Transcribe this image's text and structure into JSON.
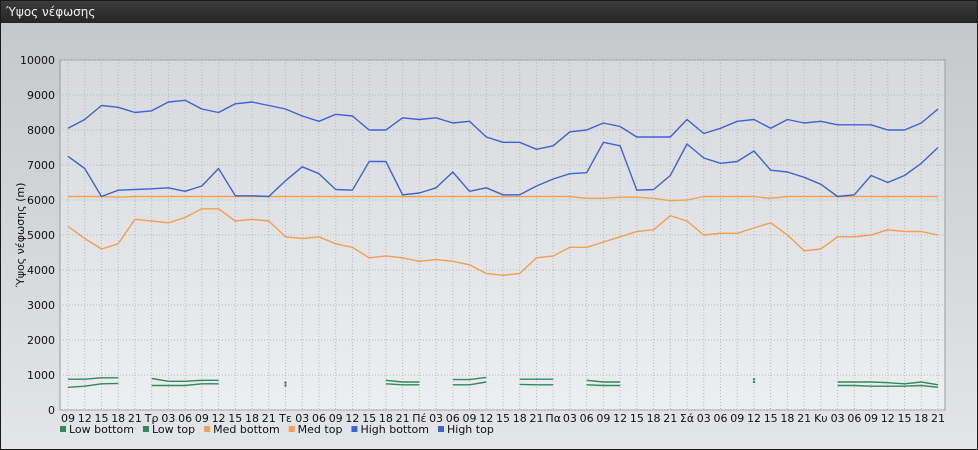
{
  "window": {
    "title": "Ύψος νέφωσης"
  },
  "chart_data": {
    "type": "line",
    "title": "",
    "ylabel": "Ύψος νέφωσης (m)",
    "ylim": [
      0,
      10000
    ],
    "yticks": [
      0,
      1000,
      2000,
      3000,
      4000,
      5000,
      6000,
      7000,
      8000,
      9000,
      10000
    ],
    "grid": true,
    "legend_position": "bottom-left",
    "x": [
      "09",
      "12",
      "15",
      "18",
      "21",
      "Τρ",
      "03",
      "06",
      "09",
      "12",
      "15",
      "18",
      "21",
      "Τε",
      "03",
      "06",
      "09",
      "12",
      "15",
      "18",
      "21",
      "Πέ",
      "03",
      "06",
      "09",
      "12",
      "15",
      "18",
      "21",
      "Πα",
      "03",
      "06",
      "09",
      "12",
      "15",
      "18",
      "21",
      "Σά",
      "03",
      "06",
      "09",
      "12",
      "15",
      "18",
      "21",
      "Κυ",
      "03",
      "06",
      "09",
      "12",
      "15",
      "18",
      "21"
    ],
    "series": [
      {
        "name": "Low bottom",
        "color": "#2e8b57",
        "values": [
          650,
          680,
          750,
          760,
          null,
          700,
          700,
          700,
          750,
          750,
          null,
          null,
          null,
          700,
          null,
          null,
          null,
          null,
          null,
          750,
          720,
          720,
          null,
          720,
          720,
          800,
          null,
          730,
          720,
          720,
          null,
          720,
          700,
          700,
          null,
          null,
          null,
          null,
          null,
          null,
          null,
          800,
          null,
          null,
          null,
          null,
          700,
          700,
          680,
          680,
          680,
          700,
          650
        ]
      },
      {
        "name": "Low top",
        "color": "#2e8b57",
        "values": [
          880,
          880,
          920,
          920,
          null,
          900,
          820,
          820,
          850,
          850,
          null,
          null,
          null,
          780,
          null,
          null,
          null,
          null,
          null,
          850,
          800,
          800,
          null,
          870,
          870,
          930,
          null,
          880,
          880,
          880,
          null,
          850,
          800,
          800,
          null,
          null,
          null,
          null,
          null,
          null,
          null,
          880,
          null,
          null,
          null,
          null,
          800,
          800,
          800,
          780,
          750,
          800,
          720
        ]
      },
      {
        "name": "Med bottom",
        "color": "#f0a050",
        "values": [
          5250,
          4900,
          4600,
          4750,
          5450,
          5400,
          5350,
          5500,
          5750,
          5750,
          5400,
          5450,
          5400,
          4950,
          4900,
          4950,
          4750,
          4650,
          4350,
          4400,
          4350,
          4250,
          4300,
          4250,
          4150,
          3900,
          3850,
          3900,
          4350,
          4400,
          4650,
          4650,
          4800,
          4950,
          5100,
          5150,
          5550,
          5400,
          5000,
          5050,
          5050,
          5200,
          5350,
          5000,
          4550,
          4600,
          4950,
          4950,
          5000,
          5150,
          5100,
          5100,
          5000
        ]
      },
      {
        "name": "Med top",
        "color": "#f0a050",
        "values": [
          6100,
          6100,
          6100,
          6080,
          6100,
          6100,
          6100,
          6100,
          6100,
          6100,
          6100,
          6100,
          6100,
          6100,
          6100,
          6100,
          6100,
          6100,
          6100,
          6100,
          6100,
          6100,
          6100,
          6100,
          6100,
          6100,
          6100,
          6100,
          6100,
          6100,
          6100,
          6050,
          6050,
          6080,
          6080,
          6050,
          5980,
          6000,
          6100,
          6100,
          6100,
          6100,
          6050,
          6100,
          6100,
          6100,
          6100,
          6100,
          6100,
          6100,
          6100,
          6100,
          6100
        ]
      },
      {
        "name": "High bottom",
        "color": "#3b63d8",
        "values": [
          7250,
          6900,
          6100,
          6280,
          6300,
          6320,
          6350,
          6250,
          6400,
          6900,
          6120,
          6120,
          6100,
          6550,
          6950,
          6750,
          6300,
          6280,
          7100,
          7100,
          6150,
          6200,
          6350,
          6800,
          6250,
          6350,
          6150,
          6150,
          6400,
          6600,
          6750,
          6780,
          7650,
          7550,
          6280,
          6300,
          6700,
          7600,
          7200,
          7050,
          7100,
          7400,
          6850,
          6800,
          6650,
          6450,
          6100,
          6150,
          6700,
          6500,
          6700,
          7050,
          7500
        ]
      },
      {
        "name": "High top",
        "color": "#3b63d8",
        "values": [
          8050,
          8300,
          8700,
          8650,
          8500,
          8550,
          8800,
          8850,
          8600,
          8500,
          8750,
          8800,
          8700,
          8600,
          8400,
          8250,
          8450,
          8400,
          8000,
          8000,
          8350,
          8300,
          8350,
          8200,
          8250,
          7800,
          7650,
          7650,
          7450,
          7550,
          7950,
          8000,
          8200,
          8100,
          7800,
          7800,
          7800,
          8300,
          7900,
          8050,
          8250,
          8300,
          8050,
          8300,
          8200,
          8250,
          8150,
          8150,
          8150,
          8000,
          8000,
          8200,
          8600
        ]
      }
    ]
  }
}
